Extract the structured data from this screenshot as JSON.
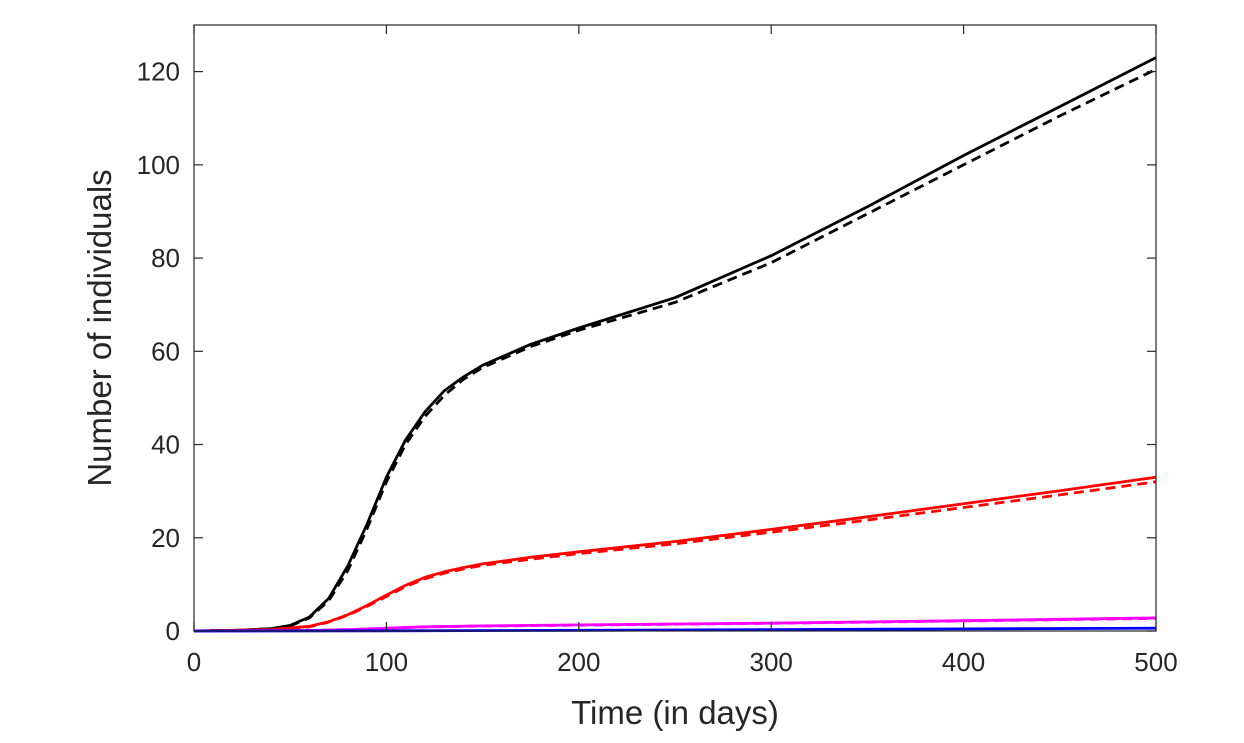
{
  "chart_data": {
    "type": "line",
    "title": "",
    "xlabel": "Time (in days)",
    "ylabel": "Number of individuals",
    "xlim": [
      0,
      500
    ],
    "ylim": [
      0,
      130
    ],
    "xticks": [
      0,
      100,
      200,
      300,
      400,
      500
    ],
    "yticks": [
      0,
      20,
      40,
      60,
      80,
      100,
      120
    ],
    "grid": false,
    "legend": "none",
    "series": [
      {
        "color": "#000000",
        "style": "solid",
        "x": [
          0,
          20,
          40,
          50,
          60,
          70,
          80,
          90,
          100,
          110,
          120,
          130,
          140,
          150,
          175,
          200,
          250,
          300,
          350,
          400,
          450,
          500
        ],
        "y": [
          0,
          0.1,
          0.5,
          1.2,
          3,
          7,
          14,
          23,
          33,
          41,
          47,
          51.5,
          54.5,
          57,
          61.5,
          65,
          71.5,
          80.5,
          91,
          102,
          112.5,
          123
        ]
      },
      {
        "color": "#000000",
        "style": "dashed",
        "x": [
          0,
          20,
          40,
          50,
          60,
          70,
          80,
          90,
          100,
          110,
          120,
          130,
          140,
          150,
          175,
          200,
          250,
          300,
          350,
          400,
          450,
          500
        ],
        "y": [
          0,
          0.1,
          0.5,
          1.1,
          2.8,
          6.5,
          13,
          22,
          32,
          40,
          46,
          50.5,
          54,
          56.5,
          61,
          64.5,
          70.5,
          79,
          89.5,
          100,
          110.5,
          120.5
        ]
      },
      {
        "color": "#ff0000",
        "style": "solid",
        "x": [
          0,
          40,
          60,
          70,
          80,
          90,
          100,
          110,
          120,
          130,
          140,
          150,
          175,
          200,
          250,
          300,
          350,
          400,
          450,
          500
        ],
        "y": [
          0,
          0.3,
          1,
          2,
          3.5,
          5.5,
          7.7,
          9.8,
          11.5,
          12.7,
          13.6,
          14.4,
          15.8,
          17,
          19.2,
          21.8,
          24.5,
          27.3,
          30.1,
          33
        ]
      },
      {
        "color": "#ff0000",
        "style": "dashed",
        "x": [
          0,
          40,
          60,
          70,
          80,
          90,
          100,
          110,
          120,
          130,
          140,
          150,
          175,
          200,
          250,
          300,
          350,
          400,
          450,
          500
        ],
        "y": [
          0,
          0.3,
          0.9,
          1.9,
          3.4,
          5.3,
          7.4,
          9.5,
          11.2,
          12.4,
          13.3,
          14.1,
          15.4,
          16.6,
          18.7,
          21.2,
          23.8,
          26.5,
          29.2,
          32
        ]
      },
      {
        "color": "#ff00ff",
        "style": "solid",
        "x": [
          0,
          60,
          80,
          100,
          120,
          150,
          200,
          300,
          400,
          500
        ],
        "y": [
          0,
          0.1,
          0.3,
          0.6,
          0.9,
          1.1,
          1.3,
          1.7,
          2.2,
          2.8
        ]
      },
      {
        "color": "#ff00ff",
        "style": "dashed",
        "x": [
          0,
          60,
          80,
          100,
          120,
          150,
          200,
          300,
          400,
          500
        ],
        "y": [
          0,
          0.1,
          0.3,
          0.55,
          0.85,
          1.05,
          1.25,
          1.65,
          2.15,
          2.7
        ]
      },
      {
        "color": "#0000ff",
        "style": "solid",
        "x": [
          0,
          100,
          200,
          300,
          400,
          500
        ],
        "y": [
          0,
          0.05,
          0.15,
          0.3,
          0.45,
          0.6
        ]
      }
    ]
  }
}
